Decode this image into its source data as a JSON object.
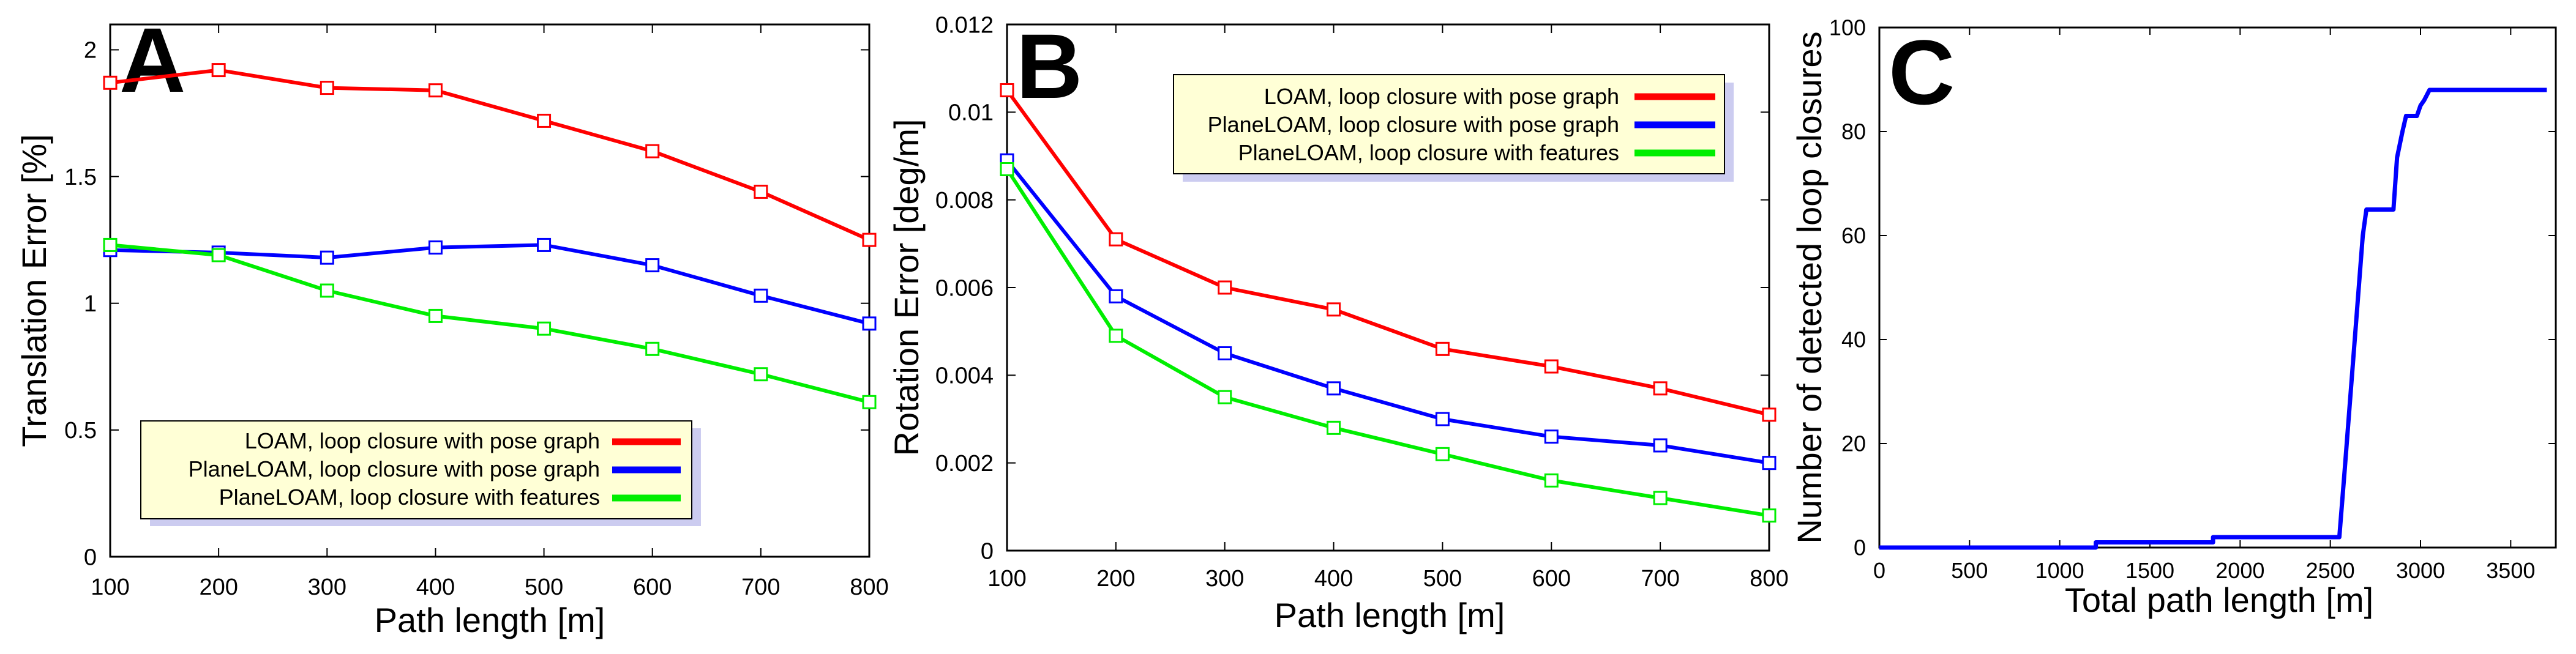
{
  "chart_data": [
    {
      "type": "line",
      "panel_label": "A",
      "xlabel": "Path length [m]",
      "ylabel": "Translation Error [%]",
      "xlim": [
        100,
        800
      ],
      "ylim": [
        0,
        2.1
      ],
      "x_ticks": [
        "100",
        "200",
        "300",
        "400",
        "500",
        "600",
        "700",
        "800"
      ],
      "y_ticks": [
        {
          "v": 0,
          "t": "0"
        },
        {
          "v": 0.5,
          "t": "0.5"
        },
        {
          "v": 1,
          "t": "1"
        },
        {
          "v": 1.5,
          "t": "1.5"
        },
        {
          "v": 2,
          "t": "2"
        }
      ],
      "x": [
        100,
        200,
        300,
        400,
        500,
        600,
        700,
        800
      ],
      "series": [
        {
          "name": "LOAM, loop closure with pose graph",
          "color": "#ff0000",
          "values": [
            1.87,
            1.92,
            1.85,
            1.84,
            1.72,
            1.6,
            1.44,
            1.25
          ]
        },
        {
          "name": "PlaneLOAM, loop closure with pose graph",
          "color": "#0000ff",
          "values": [
            1.21,
            1.2,
            1.18,
            1.22,
            1.23,
            1.15,
            1.03,
            0.92
          ]
        },
        {
          "name": "PlaneLOAM, loop closure with features",
          "color": "#00ee00",
          "values": [
            1.23,
            1.19,
            1.05,
            0.95,
            0.9,
            0.82,
            0.72,
            0.61
          ]
        }
      ]
    },
    {
      "type": "line",
      "panel_label": "B",
      "xlabel": "Path length [m]",
      "ylabel": "Rotation Error [deg/m]",
      "xlim": [
        100,
        800
      ],
      "ylim": [
        0,
        0.012
      ],
      "x_ticks": [
        "100",
        "200",
        "300",
        "400",
        "500",
        "600",
        "700",
        "800"
      ],
      "y_ticks": [
        {
          "v": 0,
          "t": "0"
        },
        {
          "v": 0.002,
          "t": "0.002"
        },
        {
          "v": 0.004,
          "t": "0.004"
        },
        {
          "v": 0.006,
          "t": "0.006"
        },
        {
          "v": 0.008,
          "t": "0.008"
        },
        {
          "v": 0.01,
          "t": "0.01"
        },
        {
          "v": 0.012,
          "t": "0.012"
        }
      ],
      "x": [
        100,
        200,
        300,
        400,
        500,
        600,
        700,
        800
      ],
      "series": [
        {
          "name": "LOAM, loop closure with pose graph",
          "color": "#ff0000",
          "values": [
            0.0105,
            0.0071,
            0.006,
            0.0055,
            0.0046,
            0.0042,
            0.0037,
            0.0031
          ]
        },
        {
          "name": "PlaneLOAM, loop closure with pose graph",
          "color": "#0000ff",
          "values": [
            0.0089,
            0.0058,
            0.0045,
            0.0037,
            0.003,
            0.0026,
            0.0024,
            0.002
          ]
        },
        {
          "name": "PlaneLOAM, loop closure with features",
          "color": "#00ee00",
          "values": [
            0.0087,
            0.0049,
            0.0035,
            0.0028,
            0.0022,
            0.0016,
            0.0012,
            0.0008
          ]
        }
      ]
    },
    {
      "type": "line",
      "panel_label": "C",
      "xlabel": "Total path length [m]",
      "ylabel": "Number of detected loop closures",
      "xlim": [
        0,
        3750
      ],
      "ylim": [
        0,
        100
      ],
      "x_ticks": [
        {
          "v": 0,
          "t": "0"
        },
        {
          "v": 500,
          "t": "500"
        },
        {
          "v": 1000,
          "t": "1000"
        },
        {
          "v": 1500,
          "t": "1500"
        },
        {
          "v": 2000,
          "t": "2000"
        },
        {
          "v": 2500,
          "t": "2500"
        },
        {
          "v": 3000,
          "t": "3000"
        },
        {
          "v": 3500,
          "t": "3500"
        }
      ],
      "y_ticks": [
        {
          "v": 0,
          "t": "0"
        },
        {
          "v": 20,
          "t": "20"
        },
        {
          "v": 40,
          "t": "40"
        },
        {
          "v": 60,
          "t": "60"
        },
        {
          "v": 80,
          "t": "80"
        },
        {
          "v": 100,
          "t": "100"
        }
      ],
      "series": [
        {
          "name": "loop closures",
          "color": "#0000ff",
          "x": [
            0,
            1200,
            1200,
            1850,
            1850,
            2550,
            2580,
            2680,
            2700,
            2850,
            2870,
            2900,
            2920,
            2980,
            3000,
            3020,
            3050,
            3700
          ],
          "values": [
            0,
            0,
            1,
            1,
            2,
            2,
            15,
            60,
            65,
            65,
            75,
            80,
            83,
            83,
            85,
            86,
            88,
            88
          ]
        }
      ]
    }
  ]
}
